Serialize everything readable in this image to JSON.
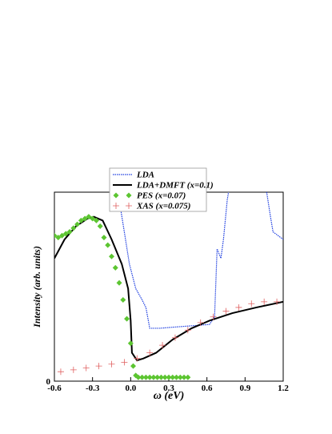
{
  "chart_data": {
    "type": "line",
    "xlabel": "ω (eV)",
    "ylabel": "Intensity (arb. units)",
    "xlim": [
      -0.6,
      1.2
    ],
    "ylim": [
      0,
      1
    ],
    "xticks": [
      -0.6,
      -0.3,
      {
        "value": 0,
        "label": "0.0"
      },
      0.3,
      0.6,
      0.9,
      1.2
    ],
    "yticks": [
      0
    ],
    "legend": "top-center",
    "series": [
      {
        "name": "LDA",
        "color": "#2040e0",
        "style": "dotted",
        "x": [
          -0.1,
          -0.05,
          -0.01,
          0.04,
          0.09,
          0.12,
          0.15,
          0.23,
          0.42,
          0.62,
          0.66,
          0.68,
          0.71,
          0.73,
          0.76,
          0.77,
          0.8,
          1.07,
          1.1,
          1.12,
          1.2
        ],
        "values": [
          1.0,
          0.79,
          0.62,
          0.49,
          0.43,
          0.39,
          0.28,
          0.28,
          0.29,
          0.3,
          0.34,
          0.7,
          0.65,
          0.75,
          0.96,
          1.0,
          null,
          1.0,
          0.87,
          0.79,
          0.75
        ]
      },
      {
        "name": "LDA+DMFT (x=0.1)",
        "color": "#000000",
        "style": "solid",
        "x": [
          -0.6,
          -0.52,
          -0.43,
          -0.34,
          -0.29,
          -0.22,
          -0.15,
          -0.07,
          -0.02,
          0.0,
          0.01,
          0.05,
          0.1,
          0.2,
          0.33,
          0.48,
          0.62,
          0.8,
          0.99,
          1.2
        ],
        "values": [
          0.65,
          0.75,
          0.82,
          0.86,
          0.87,
          0.85,
          0.75,
          0.62,
          0.49,
          0.32,
          0.15,
          0.11,
          0.12,
          0.15,
          0.22,
          0.28,
          0.32,
          0.36,
          0.39,
          0.42
        ]
      },
      {
        "name": "PES (x=0.07)",
        "color": "#5cc531",
        "style": "diamond",
        "x": [
          -0.6,
          -0.57,
          -0.54,
          -0.51,
          -0.48,
          -0.45,
          -0.42,
          -0.39,
          -0.36,
          -0.33,
          -0.3,
          -0.27,
          -0.24,
          -0.21,
          -0.18,
          -0.15,
          -0.12,
          -0.09,
          -0.06,
          -0.03,
          0.0,
          0.02,
          0.04,
          0.06,
          0.09,
          0.12,
          0.15,
          0.18,
          0.21,
          0.24,
          0.27,
          0.3,
          0.33,
          0.36,
          0.39,
          0.42,
          0.45
        ],
        "values": [
          0.77,
          0.76,
          0.77,
          0.78,
          0.79,
          0.81,
          0.83,
          0.85,
          0.86,
          0.87,
          0.86,
          0.85,
          0.82,
          0.76,
          0.72,
          0.66,
          0.6,
          0.52,
          0.43,
          0.33,
          0.2,
          0.08,
          0.03,
          0.02,
          0.02,
          0.02,
          0.02,
          0.02,
          0.02,
          0.02,
          0.02,
          0.02,
          0.02,
          0.02,
          0.02,
          0.02,
          0.02
        ]
      },
      {
        "name": "XAS (x=0.075)",
        "color": "#e06060",
        "style": "plus",
        "x": [
          -0.55,
          -0.45,
          -0.35,
          -0.25,
          -0.15,
          -0.05,
          0.05,
          0.15,
          0.25,
          0.35,
          0.45,
          0.55,
          0.65,
          0.75,
          0.85,
          0.95,
          1.05,
          1.15
        ],
        "values": [
          0.05,
          0.06,
          0.07,
          0.08,
          0.09,
          0.1,
          0.12,
          0.15,
          0.19,
          0.23,
          0.27,
          0.31,
          0.34,
          0.37,
          0.39,
          0.41,
          0.42,
          0.42
        ]
      }
    ]
  }
}
